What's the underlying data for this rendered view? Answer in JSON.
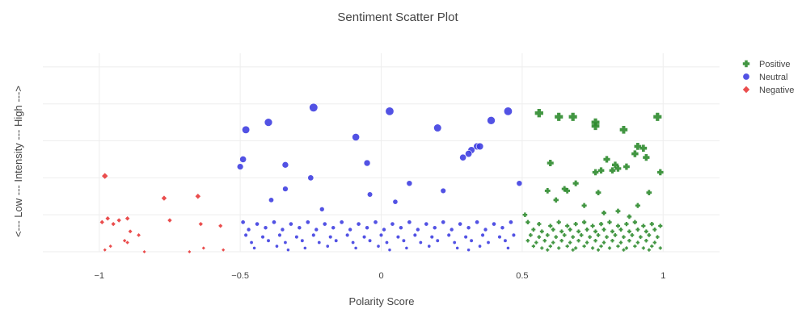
{
  "chart_data": {
    "type": "scatter",
    "title": "Sentiment Scatter Plot",
    "xlabel": "Polarity Score",
    "ylabel": "<--- Low --- Intensity --- High --->",
    "xlim": [
      -1.2,
      1.2
    ],
    "ylim": [
      0,
      1.1
    ],
    "x_ticks": [
      -1,
      -0.5,
      0,
      0.5,
      1
    ],
    "x_tick_labels": [
      "−1",
      "−0.5",
      "0",
      "0.5",
      "1"
    ],
    "y_gridlines": [
      0,
      0.2,
      0.4,
      0.6,
      0.8,
      1.0
    ],
    "grid": true,
    "legend_position": "top-right",
    "colors": {
      "Positive": "#2e8b2e",
      "Neutral": "#3a3ae0",
      "Negative": "#e83a3a"
    },
    "series": [
      {
        "name": "Positive",
        "marker": "cross",
        "points": [
          [
            0.56,
            0.75
          ],
          [
            0.63,
            0.73
          ],
          [
            0.68,
            0.73
          ],
          [
            0.76,
            0.7
          ],
          [
            0.76,
            0.68
          ],
          [
            0.86,
            0.66
          ],
          [
            0.98,
            0.73
          ],
          [
            0.91,
            0.57
          ],
          [
            0.93,
            0.56
          ],
          [
            0.9,
            0.53
          ],
          [
            0.94,
            0.51
          ],
          [
            0.8,
            0.5
          ],
          [
            0.83,
            0.47
          ],
          [
            0.87,
            0.46
          ],
          [
            0.78,
            0.44
          ],
          [
            0.82,
            0.44
          ],
          [
            0.84,
            0.45
          ],
          [
            0.76,
            0.43
          ],
          [
            0.99,
            0.43
          ],
          [
            0.6,
            0.48
          ],
          [
            0.69,
            0.37
          ],
          [
            0.59,
            0.33
          ],
          [
            0.65,
            0.34
          ],
          [
            0.66,
            0.33
          ],
          [
            0.77,
            0.32
          ],
          [
            0.95,
            0.32
          ],
          [
            0.62,
            0.28
          ],
          [
            0.72,
            0.25
          ],
          [
            0.91,
            0.25
          ],
          [
            0.79,
            0.21
          ],
          [
            0.84,
            0.22
          ],
          [
            0.51,
            0.2
          ],
          [
            0.88,
            0.19
          ],
          [
            0.52,
            0.16
          ],
          [
            0.56,
            0.15
          ],
          [
            0.6,
            0.14
          ],
          [
            0.63,
            0.16
          ],
          [
            0.66,
            0.14
          ],
          [
            0.69,
            0.15
          ],
          [
            0.72,
            0.16
          ],
          [
            0.75,
            0.14
          ],
          [
            0.78,
            0.15
          ],
          [
            0.81,
            0.16
          ],
          [
            0.84,
            0.14
          ],
          [
            0.87,
            0.15
          ],
          [
            0.9,
            0.16
          ],
          [
            0.93,
            0.14
          ],
          [
            0.96,
            0.15
          ],
          [
            0.99,
            0.14
          ],
          [
            0.54,
            0.12
          ],
          [
            0.57,
            0.11
          ],
          [
            0.61,
            0.12
          ],
          [
            0.64,
            0.11
          ],
          [
            0.67,
            0.12
          ],
          [
            0.7,
            0.11
          ],
          [
            0.73,
            0.12
          ],
          [
            0.76,
            0.11
          ],
          [
            0.79,
            0.12
          ],
          [
            0.82,
            0.11
          ],
          [
            0.85,
            0.12
          ],
          [
            0.88,
            0.11
          ],
          [
            0.91,
            0.12
          ],
          [
            0.94,
            0.11
          ],
          [
            0.97,
            0.12
          ],
          [
            0.53,
            0.09
          ],
          [
            0.56,
            0.08
          ],
          [
            0.59,
            0.09
          ],
          [
            0.62,
            0.08
          ],
          [
            0.65,
            0.09
          ],
          [
            0.68,
            0.08
          ],
          [
            0.71,
            0.09
          ],
          [
            0.74,
            0.08
          ],
          [
            0.77,
            0.09
          ],
          [
            0.8,
            0.08
          ],
          [
            0.83,
            0.09
          ],
          [
            0.86,
            0.08
          ],
          [
            0.89,
            0.09
          ],
          [
            0.92,
            0.08
          ],
          [
            0.95,
            0.09
          ],
          [
            0.98,
            0.08
          ],
          [
            0.52,
            0.06
          ],
          [
            0.55,
            0.05
          ],
          [
            0.58,
            0.06
          ],
          [
            0.61,
            0.05
          ],
          [
            0.64,
            0.06
          ],
          [
            0.67,
            0.05
          ],
          [
            0.7,
            0.06
          ],
          [
            0.73,
            0.05
          ],
          [
            0.76,
            0.06
          ],
          [
            0.79,
            0.05
          ],
          [
            0.82,
            0.06
          ],
          [
            0.85,
            0.05
          ],
          [
            0.88,
            0.06
          ],
          [
            0.91,
            0.05
          ],
          [
            0.94,
            0.06
          ],
          [
            0.97,
            0.05
          ],
          [
            0.54,
            0.03
          ],
          [
            0.57,
            0.02
          ],
          [
            0.6,
            0.03
          ],
          [
            0.63,
            0.02
          ],
          [
            0.66,
            0.03
          ],
          [
            0.69,
            0.02
          ],
          [
            0.72,
            0.03
          ],
          [
            0.75,
            0.02
          ],
          [
            0.78,
            0.03
          ],
          [
            0.81,
            0.02
          ],
          [
            0.84,
            0.03
          ],
          [
            0.87,
            0.02
          ],
          [
            0.9,
            0.03
          ],
          [
            0.93,
            0.02
          ],
          [
            0.96,
            0.03
          ],
          [
            0.99,
            0.02
          ],
          [
            0.59,
            0.01
          ],
          [
            0.68,
            0.01
          ],
          [
            0.77,
            0.01
          ],
          [
            0.86,
            0.01
          ],
          [
            0.95,
            0.01
          ]
        ]
      },
      {
        "name": "Neutral",
        "marker": "circle",
        "points": [
          [
            -0.24,
            0.78
          ],
          [
            0.03,
            0.76
          ],
          [
            0.45,
            0.76
          ],
          [
            0.39,
            0.71
          ],
          [
            -0.4,
            0.7
          ],
          [
            -0.48,
            0.66
          ],
          [
            0.2,
            0.67
          ],
          [
            -0.09,
            0.62
          ],
          [
            0.34,
            0.57
          ],
          [
            0.35,
            0.57
          ],
          [
            0.32,
            0.55
          ],
          [
            0.31,
            0.53
          ],
          [
            0.29,
            0.51
          ],
          [
            -0.49,
            0.5
          ],
          [
            -0.5,
            0.46
          ],
          [
            -0.05,
            0.48
          ],
          [
            -0.34,
            0.47
          ],
          [
            -0.25,
            0.4
          ],
          [
            0.1,
            0.37
          ],
          [
            0.49,
            0.37
          ],
          [
            -0.34,
            0.34
          ],
          [
            -0.04,
            0.31
          ],
          [
            -0.39,
            0.28
          ],
          [
            0.22,
            0.33
          ],
          [
            0.05,
            0.27
          ],
          [
            -0.21,
            0.23
          ],
          [
            -0.49,
            0.16
          ],
          [
            -0.44,
            0.15
          ],
          [
            -0.38,
            0.16
          ],
          [
            -0.32,
            0.15
          ],
          [
            -0.26,
            0.16
          ],
          [
            -0.2,
            0.15
          ],
          [
            -0.14,
            0.16
          ],
          [
            -0.08,
            0.15
          ],
          [
            -0.02,
            0.16
          ],
          [
            0.04,
            0.15
          ],
          [
            0.1,
            0.16
          ],
          [
            0.16,
            0.15
          ],
          [
            0.22,
            0.16
          ],
          [
            0.28,
            0.15
          ],
          [
            0.34,
            0.16
          ],
          [
            0.4,
            0.15
          ],
          [
            0.46,
            0.16
          ],
          [
            -0.47,
            0.12
          ],
          [
            -0.41,
            0.13
          ],
          [
            -0.35,
            0.12
          ],
          [
            -0.29,
            0.13
          ],
          [
            -0.23,
            0.12
          ],
          [
            -0.17,
            0.13
          ],
          [
            -0.11,
            0.12
          ],
          [
            -0.05,
            0.13
          ],
          [
            0.01,
            0.12
          ],
          [
            0.07,
            0.13
          ],
          [
            0.13,
            0.12
          ],
          [
            0.19,
            0.13
          ],
          [
            0.25,
            0.12
          ],
          [
            0.31,
            0.13
          ],
          [
            0.37,
            0.12
          ],
          [
            0.43,
            0.13
          ],
          [
            -0.48,
            0.09
          ],
          [
            -0.42,
            0.08
          ],
          [
            -0.36,
            0.09
          ],
          [
            -0.3,
            0.08
          ],
          [
            -0.24,
            0.09
          ],
          [
            -0.18,
            0.08
          ],
          [
            -0.12,
            0.09
          ],
          [
            -0.06,
            0.08
          ],
          [
            0.0,
            0.09
          ],
          [
            0.06,
            0.08
          ],
          [
            0.12,
            0.09
          ],
          [
            0.18,
            0.08
          ],
          [
            0.24,
            0.09
          ],
          [
            0.3,
            0.08
          ],
          [
            0.36,
            0.09
          ],
          [
            0.42,
            0.08
          ],
          [
            0.47,
            0.09
          ],
          [
            -0.46,
            0.05
          ],
          [
            -0.4,
            0.06
          ],
          [
            -0.34,
            0.05
          ],
          [
            -0.28,
            0.06
          ],
          [
            -0.22,
            0.05
          ],
          [
            -0.16,
            0.06
          ],
          [
            -0.1,
            0.05
          ],
          [
            -0.04,
            0.06
          ],
          [
            0.02,
            0.05
          ],
          [
            0.08,
            0.06
          ],
          [
            0.14,
            0.05
          ],
          [
            0.2,
            0.06
          ],
          [
            0.26,
            0.05
          ],
          [
            0.32,
            0.06
          ],
          [
            0.38,
            0.05
          ],
          [
            0.44,
            0.06
          ],
          [
            -0.45,
            0.02
          ],
          [
            -0.37,
            0.03
          ],
          [
            -0.27,
            0.02
          ],
          [
            -0.19,
            0.03
          ],
          [
            -0.09,
            0.02
          ],
          [
            -0.01,
            0.03
          ],
          [
            0.09,
            0.02
          ],
          [
            0.17,
            0.03
          ],
          [
            0.27,
            0.02
          ],
          [
            0.35,
            0.03
          ],
          [
            0.45,
            0.02
          ],
          [
            -0.33,
            0.01
          ],
          [
            0.03,
            0.01
          ],
          [
            0.31,
            0.01
          ]
        ]
      },
      {
        "name": "Negative",
        "marker": "diamond",
        "points": [
          [
            -0.98,
            0.41
          ],
          [
            -0.77,
            0.29
          ],
          [
            -0.65,
            0.3
          ],
          [
            -0.97,
            0.18
          ],
          [
            -0.93,
            0.17
          ],
          [
            -0.9,
            0.18
          ],
          [
            -0.95,
            0.15
          ],
          [
            -0.99,
            0.16
          ],
          [
            -0.75,
            0.17
          ],
          [
            -0.64,
            0.15
          ],
          [
            -0.57,
            0.14
          ],
          [
            -0.89,
            0.11
          ],
          [
            -0.86,
            0.09
          ],
          [
            -0.91,
            0.06
          ],
          [
            -0.96,
            0.03
          ],
          [
            -0.98,
            0.01
          ],
          [
            -0.84,
            0.0
          ],
          [
            -0.68,
            0.0
          ],
          [
            -0.63,
            0.02
          ],
          [
            -0.56,
            0.01
          ],
          [
            -0.9,
            0.05
          ]
        ]
      }
    ]
  }
}
